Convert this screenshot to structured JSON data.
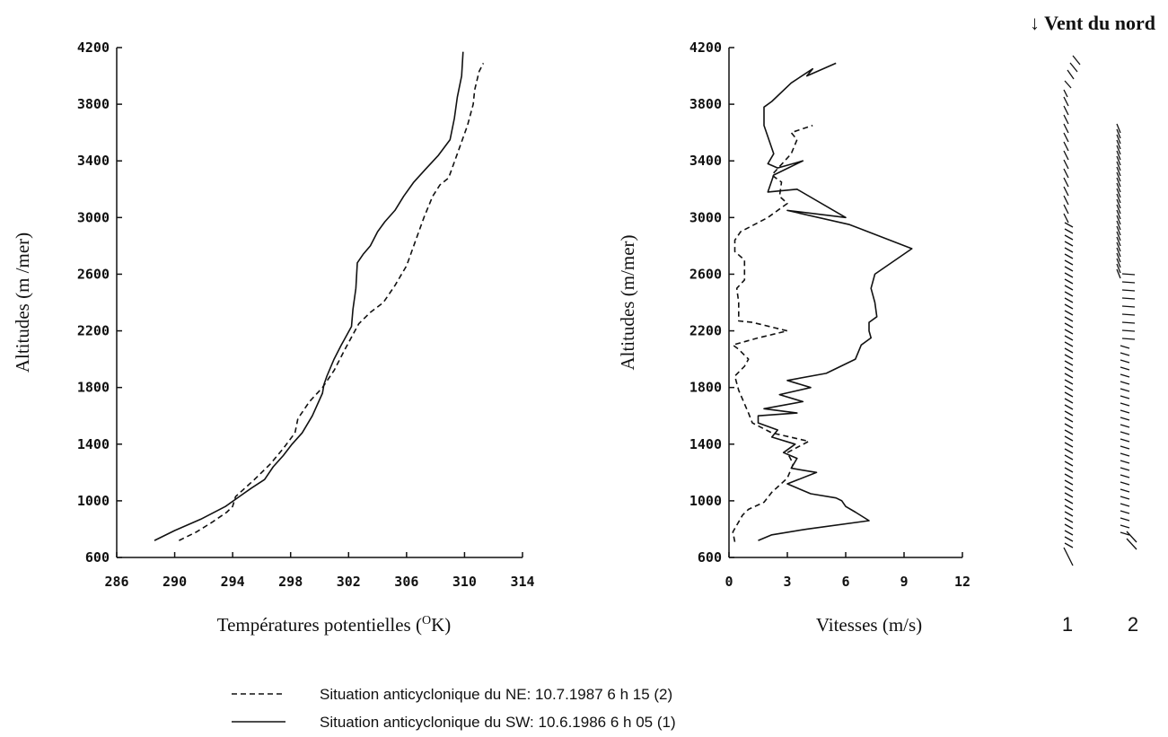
{
  "chart_data": [
    {
      "type": "line",
      "xlabel": "Températures potentielles (°K)",
      "xlabel_main": "Températures potentielles (",
      "xlabel_sup": "O",
      "xlabel_end": "K)",
      "ylabel": "Altitudes (m /mer)",
      "xlim": [
        286,
        314
      ],
      "ylim": [
        600,
        4200
      ],
      "xticks": [
        "286",
        "290",
        "294",
        "298",
        "302",
        "306",
        "310",
        "314"
      ],
      "yticks": [
        "600",
        "1000",
        "1400",
        "1800",
        "2200",
        "2600",
        "3000",
        "3400",
        "3800",
        "4200"
      ],
      "series": [
        {
          "name": "Situation anticyclonique du NE: 10.7.1987 6 h 15 (2)",
          "style": "dashed",
          "x": [
            290.3,
            291.5,
            292.6,
            293.6,
            294.0,
            294.2,
            295.5,
            296.6,
            297.5,
            298.3,
            298.5,
            299.3,
            300.2,
            301.0,
            301.8,
            302.7,
            303.5,
            304.4,
            305.2,
            306.0,
            306.6,
            307.2,
            307.8,
            308.3,
            308.9,
            309.5,
            310.2,
            310.6,
            310.7,
            311.0,
            311.3
          ],
          "y": [
            720,
            780,
            850,
            920,
            960,
            1030,
            1150,
            1260,
            1370,
            1480,
            1580,
            1700,
            1800,
            1920,
            2080,
            2250,
            2330,
            2400,
            2520,
            2660,
            2830,
            3000,
            3150,
            3230,
            3280,
            3450,
            3650,
            3800,
            3900,
            4030,
            4090
          ]
        },
        {
          "name": "Situation anticyclonique du SW: 10.6.1986 6 h 05 (1)",
          "style": "solid",
          "x": [
            288.6,
            290.0,
            291.8,
            293.5,
            294.6,
            295.3,
            296.2,
            296.8,
            297.5,
            298.1,
            298.8,
            299.5,
            300.2,
            300.3,
            300.5,
            301.0,
            301.5,
            302.2,
            302.3,
            302.5,
            302.6,
            303.0,
            303.5,
            304.0,
            304.5,
            305.2,
            305.8,
            306.5,
            307.3,
            308.2,
            309.0,
            309.3,
            309.5,
            309.8,
            309.9
          ],
          "y": [
            720,
            790,
            870,
            960,
            1040,
            1090,
            1150,
            1240,
            1320,
            1400,
            1480,
            1600,
            1760,
            1820,
            1880,
            2000,
            2100,
            2230,
            2350,
            2500,
            2680,
            2740,
            2800,
            2900,
            2970,
            3050,
            3150,
            3250,
            3340,
            3440,
            3550,
            3700,
            3850,
            4000,
            4170
          ]
        }
      ]
    },
    {
      "type": "line",
      "xlabel": "Vitesses (m/s)",
      "ylabel": "Altitudes (m/mer)",
      "xlim": [
        0,
        12
      ],
      "ylim": [
        600,
        4200
      ],
      "xticks": [
        "0",
        "3",
        "6",
        "9",
        "12"
      ],
      "yticks": [
        "600",
        "1000",
        "1400",
        "1800",
        "2200",
        "2600",
        "3000",
        "3400",
        "3800",
        "4200"
      ],
      "series": [
        {
          "name": "Situation anticyclonique du NE: 10.7.1987 6 h 15 (2)",
          "style": "dashed",
          "x": [
            0.3,
            0.2,
            0.7,
            1.0,
            1.8,
            2.2,
            3.0,
            3.3,
            3.0,
            4.1,
            2.2,
            1.2,
            1.0,
            0.5,
            0.3,
            0.8,
            1.0,
            0.5,
            0.2,
            1.5,
            3.0,
            1.2,
            0.5,
            0.5,
            0.4,
            0.8,
            0.8,
            0.3,
            0.3,
            0.6,
            2.0,
            3.0,
            2.6,
            2.7,
            2.2,
            3.2,
            3.5,
            3.2,
            4.3
          ],
          "y": [
            710,
            780,
            900,
            940,
            990,
            1060,
            1160,
            1260,
            1340,
            1420,
            1480,
            1550,
            1620,
            1780,
            1880,
            1950,
            2000,
            2070,
            2100,
            2150,
            2200,
            2260,
            2270,
            2400,
            2500,
            2560,
            2700,
            2760,
            2840,
            2900,
            3000,
            3100,
            3150,
            3250,
            3300,
            3450,
            3550,
            3600,
            3650
          ]
        },
        {
          "name": "Situation anticyclonique du SW: 10.6.1986 6 h 05 (1)",
          "style": "solid",
          "x": [
            1.5,
            2.2,
            4.0,
            7.2,
            6.5,
            6.0,
            5.8,
            5.5,
            4.2,
            3.0,
            4.5,
            3.2,
            3.5,
            2.8,
            3.4,
            2.2,
            2.5,
            1.5,
            1.5,
            3.5,
            1.8,
            3.8,
            2.6,
            4.2,
            3.0,
            5.0,
            6.5,
            6.8,
            7.3,
            7.2,
            7.2,
            7.6,
            7.5,
            7.3,
            7.5,
            9.4,
            6.2,
            3.0,
            6.0,
            3.5,
            2.0,
            2.3,
            3.8,
            2.5,
            2.0,
            2.3,
            1.8,
            1.8,
            2.2,
            3.2,
            4.3,
            4.0,
            5.5
          ],
          "y": [
            720,
            760,
            800,
            860,
            920,
            960,
            1000,
            1020,
            1050,
            1120,
            1200,
            1230,
            1300,
            1340,
            1400,
            1450,
            1500,
            1550,
            1600,
            1620,
            1650,
            1700,
            1750,
            1800,
            1850,
            1900,
            2000,
            2100,
            2150,
            2200,
            2260,
            2300,
            2400,
            2500,
            2600,
            2780,
            2950,
            3050,
            3000,
            3200,
            3180,
            3300,
            3400,
            3350,
            3380,
            3450,
            3650,
            3780,
            3820,
            3950,
            4050,
            4000,
            4090
          ]
        }
      ]
    },
    {
      "type": "wind-barbs",
      "title": "Vent du nord",
      "columns": [
        "1",
        "2"
      ]
    }
  ],
  "legend": [
    {
      "style": "dashed",
      "label": "Situation anticyclonique du NE: 10.7.1987 6 h 15 (2)"
    },
    {
      "style": "solid",
      "label": "Situation anticyclonique du SW: 10.6.1986 6 h 05 (1)"
    }
  ]
}
